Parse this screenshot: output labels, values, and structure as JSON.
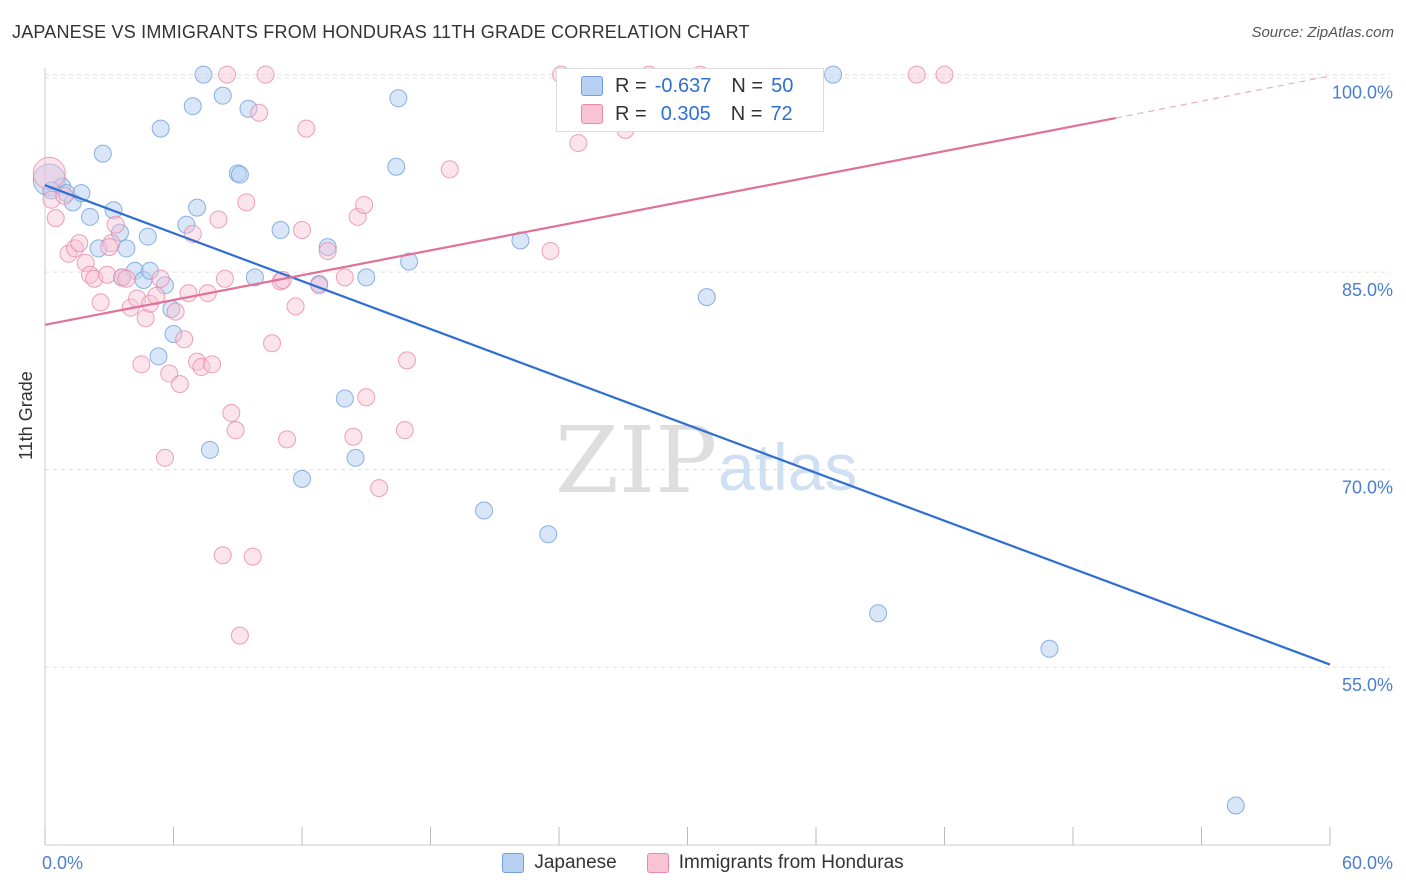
{
  "title": "JAPANESE VS IMMIGRANTS FROM HONDURAS 11TH GRADE CORRELATION CHART",
  "source": "Source: ZipAtlas.com",
  "watermark": {
    "zip": "ZIP",
    "atlas": "atlas"
  },
  "legend": {
    "japanese": {
      "r_label": "R =",
      "r": "-0.637",
      "n_label": "N =",
      "n": "50"
    },
    "honduras": {
      "r_label": "R =",
      "r": "0.305",
      "n_label": "N =",
      "n": "72"
    }
  },
  "bottom_legend": {
    "japanese": "Japanese",
    "honduras": "Immigrants from Honduras"
  },
  "colors": {
    "japanese_fill": "#b8d1f3",
    "japanese_stroke": "#6f9fdc",
    "japanese_line": "#2f6fd1",
    "honduras_fill": "#f8c4d5",
    "honduras_stroke": "#e88aa9",
    "honduras_line": "#e0729a",
    "axis_text": "#4a7fd0",
    "grid": "#e0e0e0"
  },
  "chart_data": {
    "type": "scatter",
    "title": "JAPANESE VS IMMIGRANTS FROM HONDURAS 11TH GRADE CORRELATION CHART",
    "xlabel": "",
    "ylabel": "11th Grade",
    "xlim": [
      0,
      60
    ],
    "ylim": [
      41.5,
      100.5
    ],
    "x_tick_labels": [
      "0.0%",
      "60.0%"
    ],
    "y_ticks": [
      55,
      70,
      85,
      100
    ],
    "y_tick_labels": [
      "55.0%",
      "70.0%",
      "85.0%",
      "100.0%"
    ],
    "series": [
      {
        "name": "Japanese",
        "r": -0.637,
        "n": 50,
        "trend": {
          "x": [
            0,
            60
          ],
          "y": [
            91.6,
            55.2
          ],
          "dashed_to": null
        },
        "points": [
          [
            0.2,
            92.0
          ],
          [
            0.8,
            91.5
          ],
          [
            1.0,
            91.0
          ],
          [
            1.3,
            90.3
          ],
          [
            1.7,
            91.0
          ],
          [
            2.1,
            89.2
          ],
          [
            2.5,
            86.8
          ],
          [
            2.7,
            94.0
          ],
          [
            3.2,
            89.7
          ],
          [
            3.5,
            88.0
          ],
          [
            3.8,
            86.8
          ],
          [
            4.2,
            85.1
          ],
          [
            4.6,
            84.4
          ],
          [
            4.8,
            87.7
          ],
          [
            4.9,
            85.1
          ],
          [
            5.3,
            78.6
          ],
          [
            5.4,
            95.9
          ],
          [
            5.9,
            82.2
          ],
          [
            6.0,
            80.3
          ],
          [
            6.6,
            88.6
          ],
          [
            6.9,
            97.6
          ],
          [
            7.1,
            89.9
          ],
          [
            7.4,
            100.0
          ],
          [
            7.7,
            71.5
          ],
          [
            8.3,
            98.4
          ],
          [
            9.0,
            92.5
          ],
          [
            9.1,
            92.4
          ],
          [
            9.5,
            97.4
          ],
          [
            9.8,
            84.6
          ],
          [
            11.0,
            88.2
          ],
          [
            12.0,
            69.3
          ],
          [
            12.8,
            84.1
          ],
          [
            13.2,
            86.9
          ],
          [
            14.0,
            75.4
          ],
          [
            14.5,
            70.9
          ],
          [
            15.0,
            84.6
          ],
          [
            16.4,
            93.0
          ],
          [
            16.5,
            98.2
          ],
          [
            17.0,
            85.8
          ],
          [
            20.5,
            66.9
          ],
          [
            22.2,
            87.4
          ],
          [
            23.5,
            65.1
          ],
          [
            30.9,
            83.1
          ],
          [
            36.8,
            100.0
          ],
          [
            38.9,
            59.1
          ],
          [
            46.9,
            56.4
          ],
          [
            55.6,
            44.5
          ],
          [
            0.3,
            91.2
          ],
          [
            3.6,
            84.6
          ],
          [
            5.6,
            84.0
          ]
        ]
      },
      {
        "name": "Immigrants from Honduras",
        "r": 0.305,
        "n": 72,
        "trend": {
          "x": [
            0,
            50
          ],
          "y": [
            81.0,
            96.7
          ],
          "dashed_to": {
            "x": 60,
            "y": 99.9
          }
        },
        "points": [
          [
            0.2,
            92.5
          ],
          [
            0.3,
            90.5
          ],
          [
            0.5,
            89.1
          ],
          [
            0.9,
            90.8
          ],
          [
            1.1,
            86.4
          ],
          [
            1.4,
            86.8
          ],
          [
            1.6,
            87.2
          ],
          [
            1.9,
            85.7
          ],
          [
            2.1,
            84.8
          ],
          [
            2.3,
            84.5
          ],
          [
            2.6,
            82.7
          ],
          [
            2.9,
            84.8
          ],
          [
            3.1,
            87.2
          ],
          [
            3.3,
            88.6
          ],
          [
            3.6,
            84.6
          ],
          [
            3.8,
            84.5
          ],
          [
            4.0,
            82.3
          ],
          [
            4.3,
            83.0
          ],
          [
            4.5,
            78.0
          ],
          [
            4.7,
            81.5
          ],
          [
            4.9,
            82.6
          ],
          [
            5.2,
            83.2
          ],
          [
            5.4,
            84.5
          ],
          [
            5.6,
            70.9
          ],
          [
            5.8,
            77.3
          ],
          [
            6.1,
            82.0
          ],
          [
            6.3,
            76.5
          ],
          [
            6.5,
            79.9
          ],
          [
            6.7,
            83.4
          ],
          [
            6.9,
            87.9
          ],
          [
            7.1,
            78.2
          ],
          [
            7.3,
            77.8
          ],
          [
            7.6,
            83.4
          ],
          [
            7.8,
            78.0
          ],
          [
            8.1,
            89.0
          ],
          [
            8.3,
            63.5
          ],
          [
            8.5,
            100.0
          ],
          [
            8.7,
            74.3
          ],
          [
            8.9,
            73.0
          ],
          [
            9.1,
            57.4
          ],
          [
            9.4,
            90.3
          ],
          [
            9.7,
            63.4
          ],
          [
            10.0,
            97.1
          ],
          [
            10.3,
            100.0
          ],
          [
            10.6,
            79.6
          ],
          [
            11.0,
            84.3
          ],
          [
            11.3,
            72.3
          ],
          [
            11.7,
            82.4
          ],
          [
            12.0,
            88.2
          ],
          [
            12.2,
            95.9
          ],
          [
            12.8,
            84.0
          ],
          [
            13.2,
            86.6
          ],
          [
            14.0,
            84.6
          ],
          [
            14.4,
            72.5
          ],
          [
            14.6,
            89.2
          ],
          [
            15.0,
            75.5
          ],
          [
            15.6,
            68.6
          ],
          [
            16.8,
            73.0
          ],
          [
            16.9,
            78.3
          ],
          [
            18.9,
            92.8
          ],
          [
            23.6,
            86.6
          ],
          [
            24.1,
            100.0
          ],
          [
            24.9,
            94.8
          ],
          [
            27.1,
            95.8
          ],
          [
            28.2,
            100.0
          ],
          [
            30.6,
            100.0
          ],
          [
            40.7,
            100.0
          ],
          [
            42.0,
            100.0
          ],
          [
            11.1,
            84.4
          ],
          [
            14.9,
            90.1
          ],
          [
            8.4,
            84.5
          ],
          [
            3.0,
            86.9
          ]
        ]
      }
    ]
  }
}
